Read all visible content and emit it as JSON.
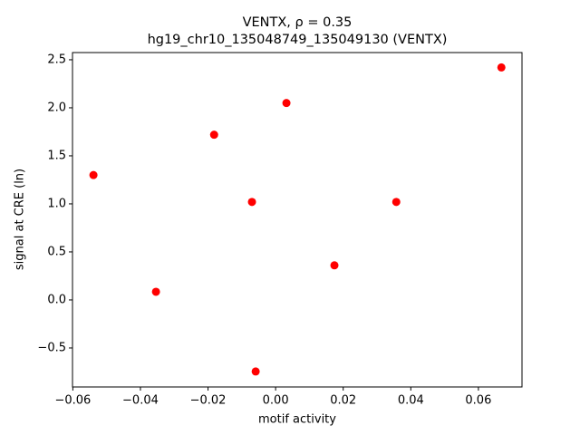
{
  "chart_data": {
    "type": "scatter",
    "title": [
      "VENTX, ρ = 0.35",
      "hg19_chr10_135048749_135049130 (VENTX)"
    ],
    "xlabel": "motif activity",
    "ylabel": "signal at CRE (ln)",
    "x": [
      0.0668,
      0.0032,
      -0.0182,
      -0.0539,
      -0.007,
      0.0357,
      0.0174,
      -0.0354,
      -0.0059
    ],
    "y": [
      2.42,
      2.05,
      1.72,
      1.3,
      1.02,
      1.02,
      0.36,
      0.085,
      -0.745
    ],
    "color": "#ff0000",
    "xlim": [
      -0.0601,
      0.0729
    ],
    "ylim": [
      -0.906,
      2.575
    ],
    "xticks": [
      {
        "value": -0.06,
        "label": "−0.06"
      },
      {
        "value": -0.04,
        "label": "−0.04"
      },
      {
        "value": -0.02,
        "label": "−0.02"
      },
      {
        "value": 0,
        "label": "0.00"
      },
      0.02,
      0.04,
      0.06
    ],
    "yticks": [
      {
        "value": -0.5,
        "label": "−0.5"
      },
      {
        "value": 0,
        "label": "0.0"
      },
      0.5,
      {
        "value": 1,
        "label": "1.0"
      },
      1.5,
      {
        "value": 2,
        "label": "2.0"
      },
      2.5
    ]
  }
}
